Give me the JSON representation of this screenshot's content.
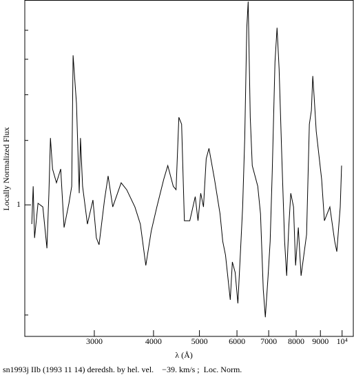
{
  "chart_data": {
    "type": "line",
    "xlabel": "λ (Å)",
    "ylabel": "Locally Normalized Flux",
    "caption": "sn1993j IIb (1993 11 14) deredsh. by hel. vel.    −39. km/s ;  Loc. Norm.",
    "xlog": true,
    "ylog": true,
    "xlim": [
      2140,
      10560
    ],
    "ylim": [
      0.437,
      3.63
    ],
    "xticks": [
      3000,
      4000,
      5000,
      6000,
      7000,
      8000,
      9000,
      {
        "value": 10000,
        "label": "10⁴"
      }
    ],
    "yticks": [
      1
    ],
    "yticks_minor": [
      0.5,
      1.5,
      2,
      2.5,
      3
    ],
    "color": "#000000",
    "x": [
      2214,
      2229,
      2244,
      2282,
      2336,
      2383,
      2406,
      2424,
      2449,
      2496,
      2548,
      2590,
      2652,
      2688,
      2706,
      2751,
      2788,
      2805,
      2834,
      2901,
      2980,
      3030,
      3070,
      3152,
      3208,
      3281,
      3418,
      3511,
      3654,
      3752,
      3853,
      3956,
      4065,
      4203,
      4287,
      4403,
      4463,
      4524,
      4585,
      4647,
      4771,
      4899,
      4965,
      5031,
      5099,
      5167,
      5237,
      5380,
      5526,
      5599,
      5675,
      5808,
      5867,
      5947,
      6027,
      6108,
      6168,
      6231,
      6293,
      6336,
      6400,
      6463,
      6638,
      6727,
      6818,
      6887,
      6980,
      7050,
      7121,
      7217,
      7290,
      7364,
      7463,
      7563,
      7639,
      7716,
      7793,
      7898,
      7977,
      8084,
      8193,
      8415,
      8529,
      8614,
      8672,
      8730,
      8818,
      9054,
      9176,
      9423,
      9647,
      9746,
      9910,
      9975
    ],
    "values": [
      0.886,
      1.124,
      0.812,
      1.01,
      0.987,
      0.761,
      1.076,
      1.523,
      1.253,
      1.149,
      1.253,
      0.867,
      1.01,
      1.124,
      2.563,
      1.891,
      1.076,
      1.523,
      1.124,
      0.886,
      1.031,
      0.812,
      0.778,
      1.031,
      1.2,
      0.987,
      1.149,
      1.1,
      0.987,
      0.886,
      0.683,
      0.848,
      0.987,
      1.174,
      1.28,
      1.124,
      1.1,
      1.735,
      1.661,
      0.905,
      0.905,
      1.053,
      0.905,
      1.076,
      0.987,
      1.337,
      1.427,
      1.174,
      0.945,
      0.795,
      0.729,
      0.55,
      0.698,
      0.654,
      0.538,
      0.761,
      0.987,
      1.523,
      3.048,
      3.594,
      1.735,
      1.28,
      1.124,
      0.945,
      0.587,
      0.493,
      0.64,
      0.795,
      1.226,
      2.454,
      3.048,
      2.35,
      1.337,
      0.795,
      0.64,
      0.867,
      1.076,
      0.987,
      0.683,
      0.867,
      0.64,
      0.83,
      1.661,
      1.811,
      2.25,
      1.975,
      1.591,
      1.174,
      0.905,
      0.987,
      0.795,
      0.745,
      0.987,
      1.28
    ]
  }
}
